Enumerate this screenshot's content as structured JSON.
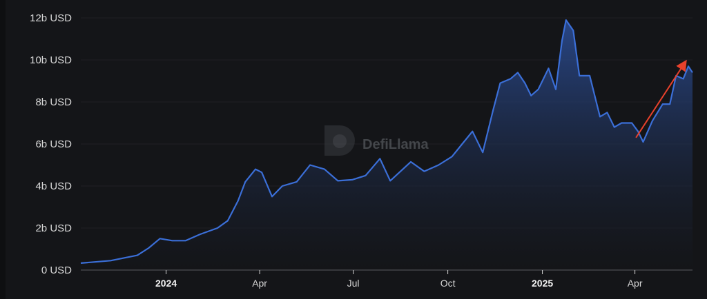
{
  "chart_data": {
    "type": "area",
    "title": "",
    "xlabel": "",
    "ylabel": "",
    "ylim": [
      0,
      12
    ],
    "xlim": [
      "2023-10-10",
      "2025-05-27"
    ],
    "grid": true,
    "y_ticks": [
      {
        "value": 0,
        "label": "0 USD"
      },
      {
        "value": 2,
        "label": "2b USD"
      },
      {
        "value": 4,
        "label": "4b USD"
      },
      {
        "value": 6,
        "label": "6b USD"
      },
      {
        "value": 8,
        "label": "8b USD"
      },
      {
        "value": 10,
        "label": "10b USD"
      },
      {
        "value": 12,
        "label": "12b USD"
      }
    ],
    "x_ticks": [
      {
        "date": "2024-01-01",
        "label": "2024",
        "bold": true
      },
      {
        "date": "2024-04-01",
        "label": "Apr",
        "bold": false
      },
      {
        "date": "2024-07-01",
        "label": "Jul",
        "bold": false
      },
      {
        "date": "2024-10-01",
        "label": "Oct",
        "bold": false
      },
      {
        "date": "2025-01-01",
        "label": "2025",
        "bold": true
      },
      {
        "date": "2025-04-01",
        "label": "Apr",
        "bold": false
      }
    ],
    "series": [
      {
        "unit": "billion USD",
        "color": "#3b6fd8",
        "points": [
          [
            "2023-10-10",
            0.33
          ],
          [
            "2023-11-08",
            0.45
          ],
          [
            "2023-12-04",
            0.7
          ],
          [
            "2023-12-15",
            1.05
          ],
          [
            "2023-12-26",
            1.5
          ],
          [
            "2024-01-07",
            1.4
          ],
          [
            "2024-01-20",
            1.4
          ],
          [
            "2024-02-03",
            1.7
          ],
          [
            "2024-02-20",
            2.0
          ],
          [
            "2024-03-01",
            2.35
          ],
          [
            "2024-03-11",
            3.3
          ],
          [
            "2024-03-18",
            4.2
          ],
          [
            "2024-03-28",
            4.8
          ],
          [
            "2024-04-03",
            4.65
          ],
          [
            "2024-04-13",
            3.5
          ],
          [
            "2024-04-23",
            4.0
          ],
          [
            "2024-05-07",
            4.2
          ],
          [
            "2024-05-20",
            5.0
          ],
          [
            "2024-06-03",
            4.8
          ],
          [
            "2024-06-16",
            4.25
          ],
          [
            "2024-06-30",
            4.3
          ],
          [
            "2024-07-13",
            4.5
          ],
          [
            "2024-07-27",
            5.3
          ],
          [
            "2024-08-06",
            4.25
          ],
          [
            "2024-08-16",
            4.7
          ],
          [
            "2024-08-26",
            5.15
          ],
          [
            "2024-09-08",
            4.7
          ],
          [
            "2024-09-22",
            5.0
          ],
          [
            "2024-10-05",
            5.4
          ],
          [
            "2024-10-15",
            6.0
          ],
          [
            "2024-10-25",
            6.6
          ],
          [
            "2024-11-04",
            5.6
          ],
          [
            "2024-11-14",
            7.6
          ],
          [
            "2024-11-21",
            8.9
          ],
          [
            "2024-12-01",
            9.1
          ],
          [
            "2024-12-08",
            9.4
          ],
          [
            "2024-12-15",
            8.9
          ],
          [
            "2024-12-21",
            8.3
          ],
          [
            "2024-12-28",
            8.6
          ],
          [
            "2025-01-07",
            9.6
          ],
          [
            "2025-01-14",
            8.6
          ],
          [
            "2025-01-20",
            10.9
          ],
          [
            "2025-01-24",
            11.9
          ],
          [
            "2025-01-31",
            11.4
          ],
          [
            "2025-02-06",
            9.25
          ],
          [
            "2025-02-16",
            9.25
          ],
          [
            "2025-02-26",
            7.3
          ],
          [
            "2025-03-05",
            7.5
          ],
          [
            "2025-03-12",
            6.8
          ],
          [
            "2025-03-19",
            7.0
          ],
          [
            "2025-03-29",
            7.0
          ],
          [
            "2025-04-04",
            6.6
          ],
          [
            "2025-04-09",
            6.1
          ],
          [
            "2025-04-18",
            7.1
          ],
          [
            "2025-04-28",
            7.9
          ],
          [
            "2025-05-05",
            7.9
          ],
          [
            "2025-05-11",
            9.25
          ],
          [
            "2025-05-18",
            9.1
          ],
          [
            "2025-05-23",
            9.7
          ],
          [
            "2025-05-27",
            9.4
          ]
        ]
      }
    ],
    "annotations": [
      {
        "type": "arrow",
        "color": "#e8412c",
        "from": [
          "2025-04-02",
          6.3
        ],
        "to": [
          "2025-05-20",
          9.9
        ]
      }
    ]
  },
  "watermark": {
    "text": "DefiLlama",
    "icon": "llama-logo-icon"
  },
  "colors": {
    "background": "#141518",
    "grid": "#1f2024",
    "line": "#3b6fd8",
    "arrow": "#e8412c"
  }
}
